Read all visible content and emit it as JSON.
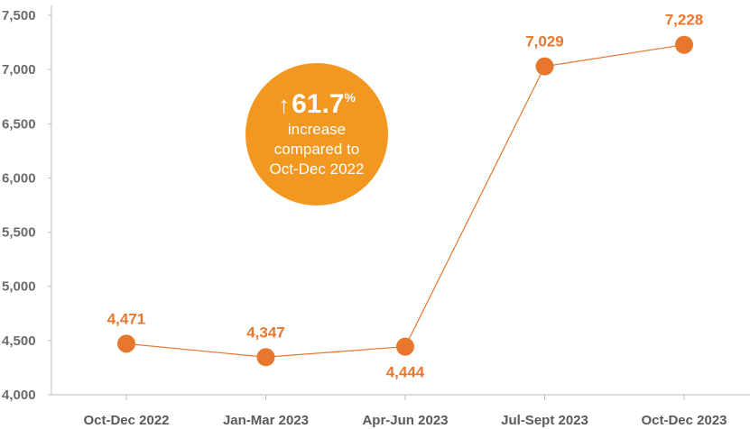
{
  "chart_data": {
    "type": "line",
    "categories": [
      "Oct-Dec 2022",
      "Jan-Mar 2023",
      "Apr-Jun 2023",
      "Jul-Sept 2023",
      "Oct-Dec 2023"
    ],
    "values": [
      4471,
      4347,
      4444,
      7029,
      7228
    ],
    "data_labels": [
      "4,471",
      "4,347",
      "4,444",
      "7,029",
      "7,228"
    ],
    "y_ticks": [
      "4,000",
      "4,500",
      "5,000",
      "5,500",
      "6,000",
      "6,500",
      "7,000",
      "7,500"
    ],
    "ylim": [
      4000,
      7500
    ],
    "grid": false,
    "title": "",
    "xlabel": "",
    "ylabel": ""
  },
  "callout": {
    "value": "61.7",
    "unit": "%",
    "arrow_icon": "up-arrow-icon",
    "line1": "increase",
    "line2": "compared to",
    "line3": "Oct-Dec 2022"
  },
  "colors": {
    "series": "#e8772e",
    "callout_bg": "#f29720",
    "axis": "#bdbdbd"
  }
}
